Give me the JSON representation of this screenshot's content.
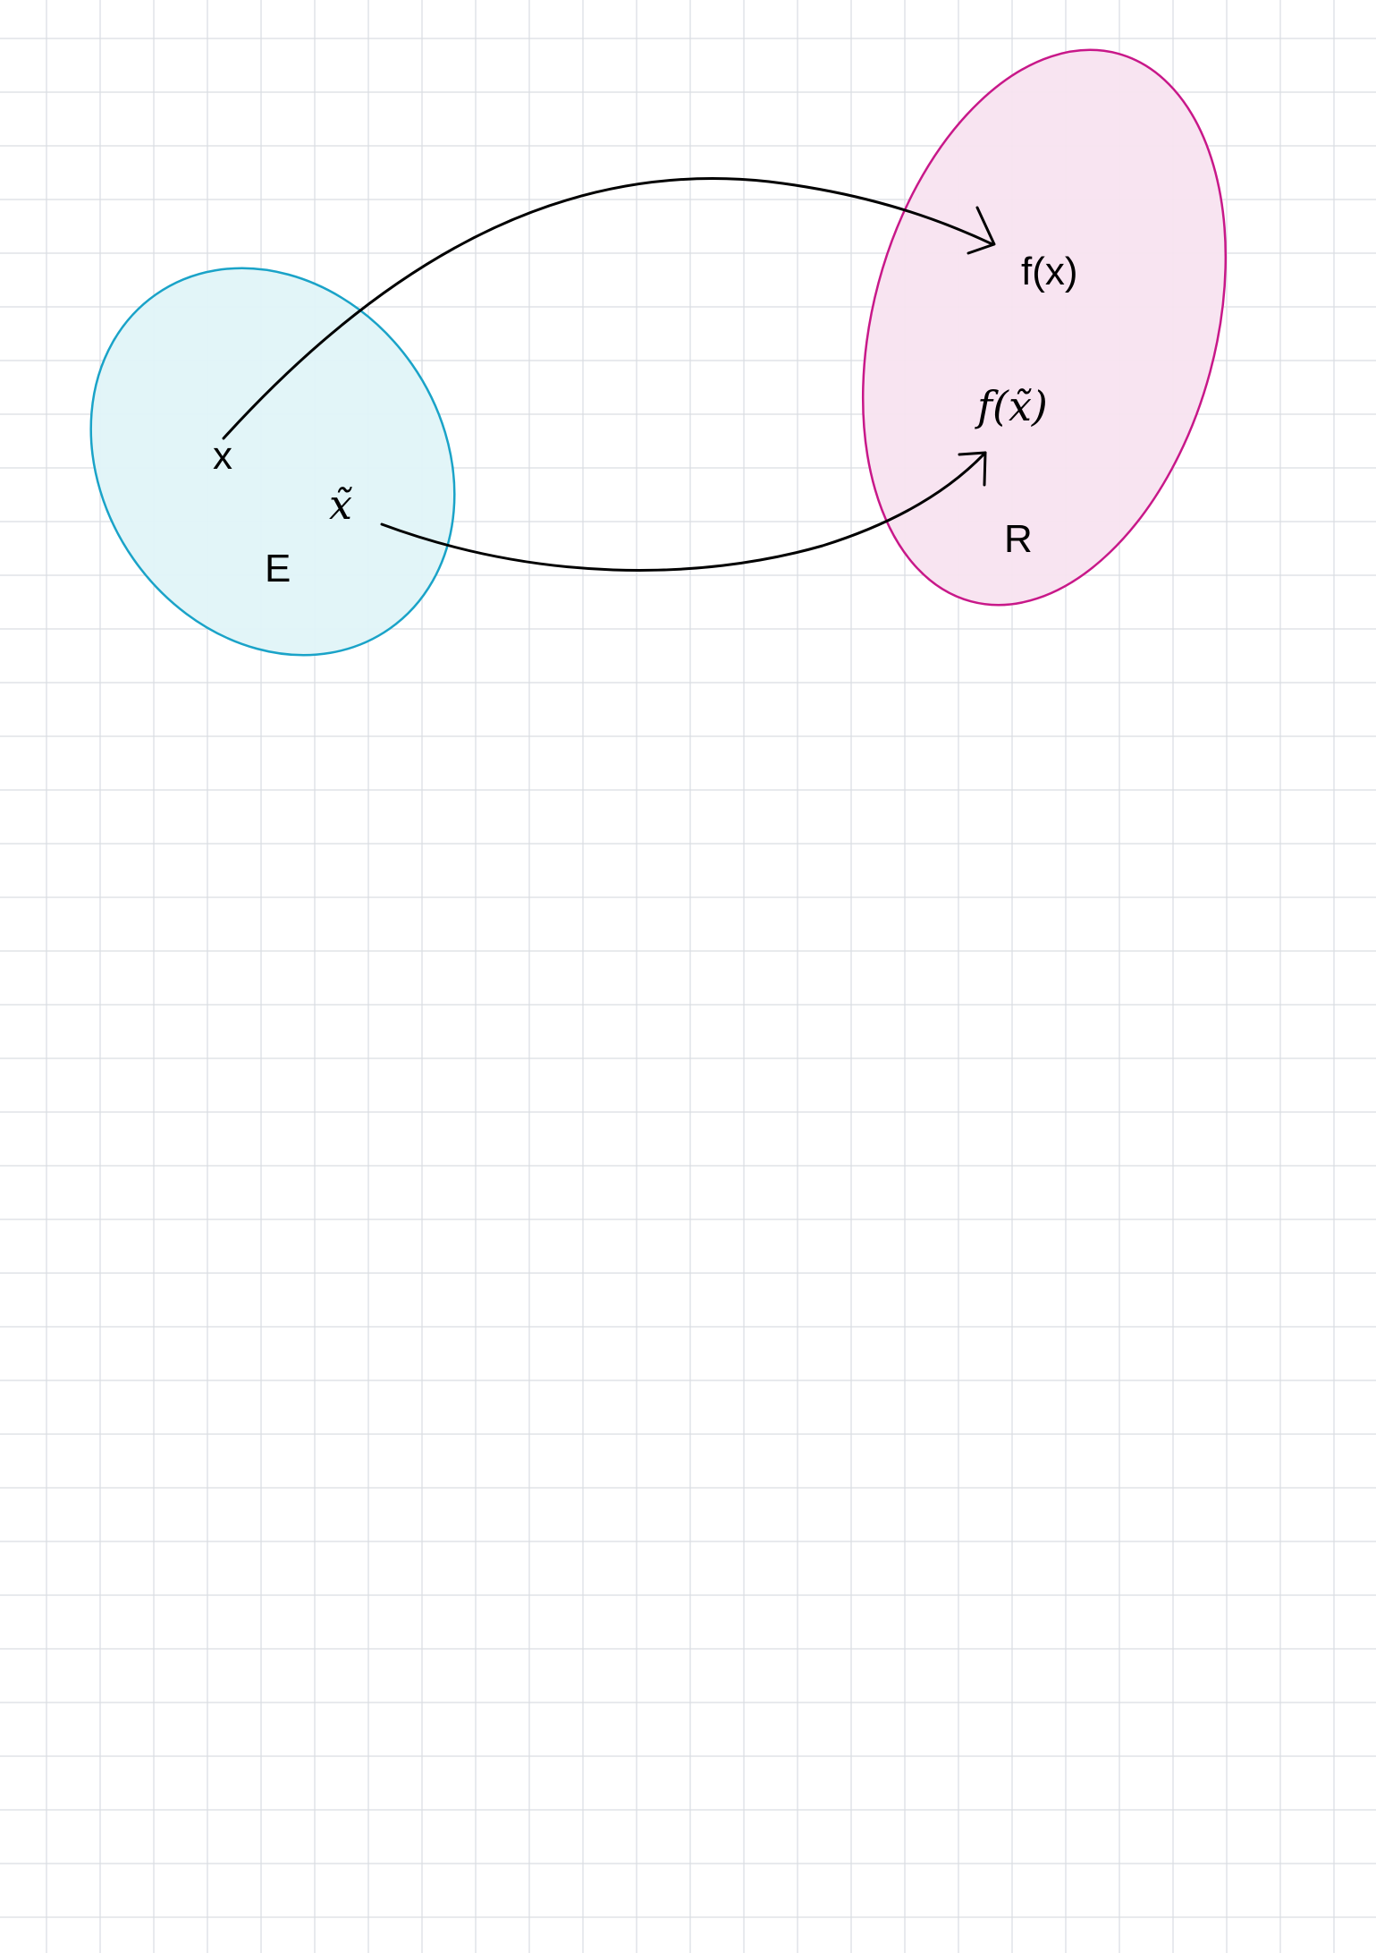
{
  "diagram": {
    "sets": [
      {
        "id": "E",
        "label": "E",
        "fill": "#e0f4f8",
        "stroke": "#1aa3c8"
      },
      {
        "id": "R",
        "label": "R",
        "fill": "#f8e3f0",
        "stroke": "#c81889"
      }
    ],
    "points": {
      "x": "x",
      "x_tilde": "x̃",
      "fx": "f(x)",
      "f_x_tilde": "f(x̃)"
    },
    "background": {
      "grid": true,
      "grid_color": "#d9dde2"
    }
  }
}
